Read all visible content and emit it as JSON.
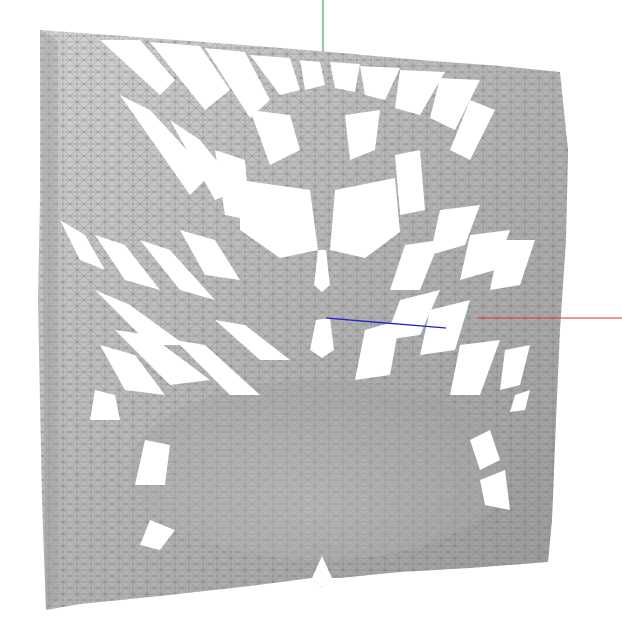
{
  "viewer": {
    "background": "#ffffff",
    "mesh_fill": "#b4b4b4",
    "mesh_shade_light": "#d2d2d2",
    "mesh_shade_dark": "#8c8c8c",
    "mesh_edge": "#6e6e6e"
  },
  "axes": {
    "x": {
      "color": "#e03030"
    },
    "y": {
      "color": "#20a020"
    },
    "z": {
      "color": "#2020d0"
    }
  }
}
